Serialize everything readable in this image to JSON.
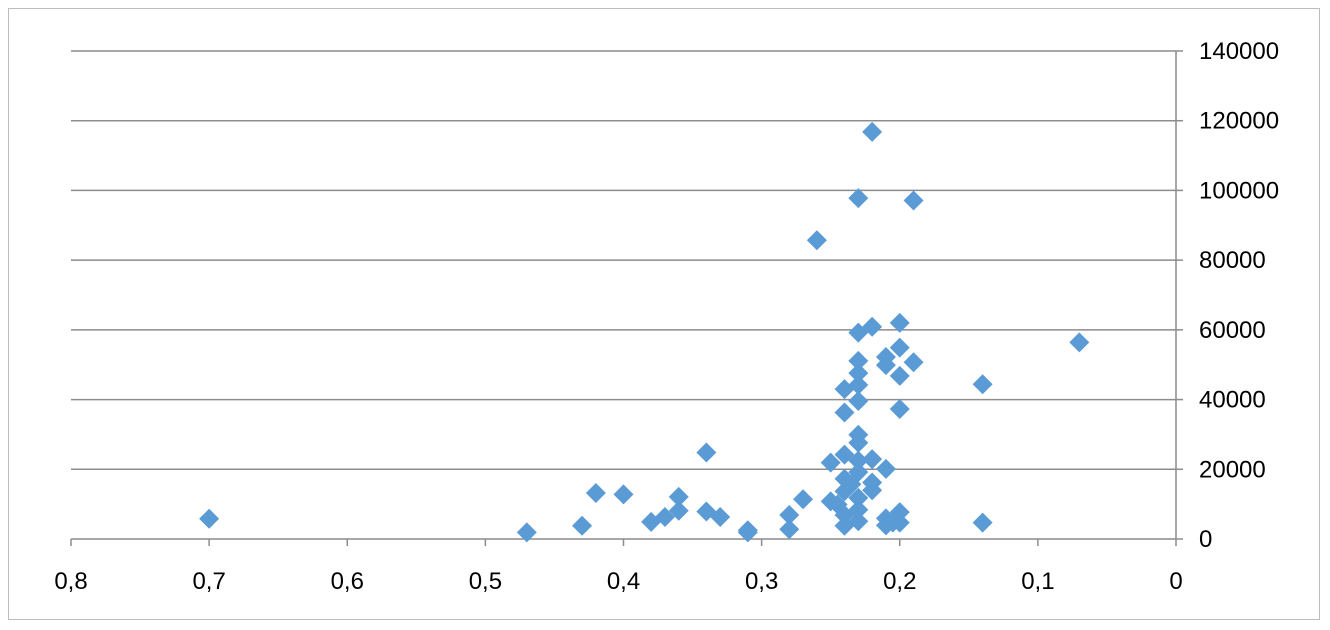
{
  "chart_data": {
    "type": "scatter",
    "title": "",
    "xlabel": "",
    "ylabel": "",
    "xlim": [
      0,
      0.8
    ],
    "x_reversed": true,
    "ylim": [
      0,
      140000
    ],
    "y_axis_position": "right",
    "grid": "horizontal",
    "legend": "none",
    "marker": "diamond",
    "marker_color": "#5b9bd5",
    "x_ticks": [
      "0,8",
      "0,7",
      "0,6",
      "0,5",
      "0,4",
      "0,3",
      "0,2",
      "0,1",
      "0"
    ],
    "x_tick_values": [
      0.8,
      0.7,
      0.6,
      0.5,
      0.4,
      0.3,
      0.2,
      0.1,
      0
    ],
    "y_ticks": [
      "0",
      "20000",
      "40000",
      "60000",
      "80000",
      "100000",
      "120000",
      "140000"
    ],
    "y_tick_values": [
      0,
      20000,
      40000,
      60000,
      80000,
      100000,
      120000,
      140000
    ],
    "points": [
      [
        0.7,
        5800
      ],
      [
        0.47,
        1900
      ],
      [
        0.43,
        3800
      ],
      [
        0.42,
        13200
      ],
      [
        0.4,
        12800
      ],
      [
        0.38,
        4900
      ],
      [
        0.37,
        6300
      ],
      [
        0.36,
        8100
      ],
      [
        0.36,
        12100
      ],
      [
        0.34,
        24800
      ],
      [
        0.34,
        7900
      ],
      [
        0.33,
        6300
      ],
      [
        0.31,
        2500
      ],
      [
        0.31,
        1900
      ],
      [
        0.28,
        6900
      ],
      [
        0.28,
        2800
      ],
      [
        0.27,
        11400
      ],
      [
        0.26,
        85700
      ],
      [
        0.25,
        21900
      ],
      [
        0.25,
        10800
      ],
      [
        0.245,
        9900
      ],
      [
        0.24,
        43000
      ],
      [
        0.24,
        36300
      ],
      [
        0.24,
        24200
      ],
      [
        0.24,
        17300
      ],
      [
        0.24,
        13700
      ],
      [
        0.24,
        6900
      ],
      [
        0.24,
        3800
      ],
      [
        0.235,
        15700
      ],
      [
        0.23,
        97800
      ],
      [
        0.23,
        59200
      ],
      [
        0.23,
        51100
      ],
      [
        0.23,
        47600
      ],
      [
        0.23,
        44200
      ],
      [
        0.23,
        39600
      ],
      [
        0.23,
        29900
      ],
      [
        0.23,
        27600
      ],
      [
        0.23,
        22500
      ],
      [
        0.23,
        19200
      ],
      [
        0.23,
        11800
      ],
      [
        0.23,
        8400
      ],
      [
        0.23,
        5100
      ],
      [
        0.22,
        116800
      ],
      [
        0.22,
        60900
      ],
      [
        0.22,
        22900
      ],
      [
        0.22,
        16200
      ],
      [
        0.22,
        14000
      ],
      [
        0.21,
        52200
      ],
      [
        0.21,
        49900
      ],
      [
        0.21,
        20100
      ],
      [
        0.21,
        5900
      ],
      [
        0.21,
        3900
      ],
      [
        0.205,
        4700
      ],
      [
        0.2,
        62000
      ],
      [
        0.2,
        54900
      ],
      [
        0.2,
        46800
      ],
      [
        0.2,
        37300
      ],
      [
        0.2,
        7700
      ],
      [
        0.2,
        4700
      ],
      [
        0.19,
        97100
      ],
      [
        0.19,
        50700
      ],
      [
        0.14,
        44400
      ],
      [
        0.14,
        4700
      ],
      [
        0.07,
        56400
      ]
    ]
  }
}
